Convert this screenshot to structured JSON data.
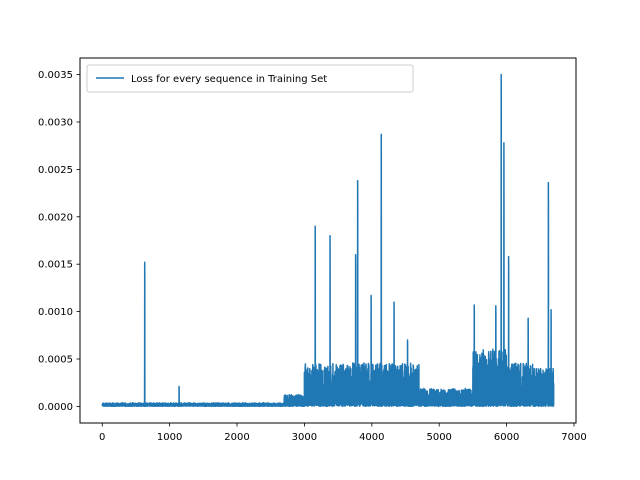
{
  "chart_data": {
    "type": "line",
    "title": "",
    "xlabel": "",
    "ylabel": "",
    "xlim": [
      -330,
      7030
    ],
    "ylim": [
      -0.000175,
      0.003675
    ],
    "grid": false,
    "legend_placement": "top-left",
    "x_ticks": [
      0,
      1000,
      2000,
      3000,
      4000,
      5000,
      6000,
      7000
    ],
    "x_tick_labels": [
      "0",
      "1000",
      "2000",
      "3000",
      "4000",
      "5000",
      "6000",
      "7000"
    ],
    "y_ticks": [
      0,
      0.0005,
      0.001,
      0.0015,
      0.002,
      0.0025,
      0.003,
      0.0035
    ],
    "y_tick_labels": [
      "0.0000",
      "0.0005",
      "0.0010",
      "0.0015",
      "0.0020",
      "0.0025",
      "0.0030",
      "0.0035"
    ],
    "series": [
      {
        "name": "Loss for every sequence in Training Set",
        "color": "#1f77b4",
        "n_points": 6700,
        "peaks": [
          {
            "x": 630,
            "y": 0.00152
          },
          {
            "x": 1140,
            "y": 0.00021
          },
          {
            "x": 3160,
            "y": 0.0019
          },
          {
            "x": 3380,
            "y": 0.0018
          },
          {
            "x": 3760,
            "y": 0.0016
          },
          {
            "x": 3790,
            "y": 0.00238
          },
          {
            "x": 3990,
            "y": 0.00117
          },
          {
            "x": 4140,
            "y": 0.00287
          },
          {
            "x": 4330,
            "y": 0.0011
          },
          {
            "x": 4530,
            "y": 0.0007
          },
          {
            "x": 5520,
            "y": 0.00107
          },
          {
            "x": 5840,
            "y": 0.00106
          },
          {
            "x": 5920,
            "y": 0.0035
          },
          {
            "x": 5960,
            "y": 0.00278
          },
          {
            "x": 6030,
            "y": 0.00158
          },
          {
            "x": 6320,
            "y": 0.00093
          },
          {
            "x": 6620,
            "y": 0.00236
          },
          {
            "x": 6660,
            "y": 0.00102
          }
        ]
      }
    ]
  }
}
